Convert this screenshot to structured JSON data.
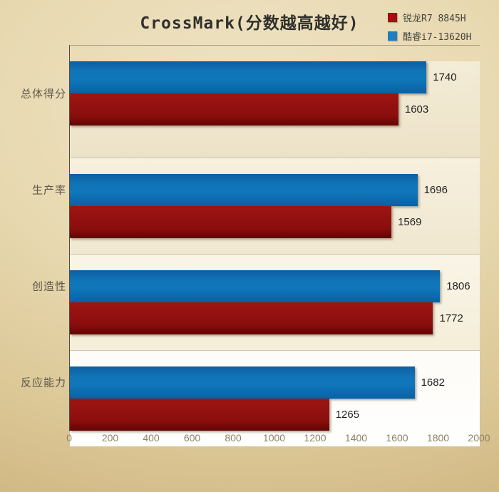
{
  "title": "CrossMark(分数越高越好)",
  "legend": {
    "items": [
      {
        "label": "锐龙R7 8845H",
        "color": "#a01113",
        "swatch": "red"
      },
      {
        "label": "酷睿i7-13620H",
        "color": "#1e7fc0",
        "swatch": "blue"
      }
    ]
  },
  "colors": {
    "bar_blue": "#0f77bb",
    "bar_red": "#8e100f",
    "background_tan": "#e3d2a6"
  },
  "chart_data": {
    "type": "bar",
    "orientation": "horizontal",
    "title": "CrossMark(分数越高越好)",
    "categories": [
      "总体得分",
      "生产率",
      "创造性",
      "反应能力"
    ],
    "series": [
      {
        "name": "酷睿i7-13620H",
        "color": "#0f77bb",
        "values": [
          1740,
          1696,
          1806,
          1682
        ]
      },
      {
        "name": "锐龙R7 8845H",
        "color": "#8e100f",
        "values": [
          1603,
          1569,
          1772,
          1265
        ]
      }
    ],
    "xlim": [
      0,
      2000
    ],
    "x_ticks": [
      "0",
      "200",
      "400",
      "600",
      "800",
      "1000",
      "1200",
      "1400",
      "1600",
      "1800",
      "2000"
    ],
    "legend_position": "top-right",
    "grid": false,
    "value_labels": true
  }
}
